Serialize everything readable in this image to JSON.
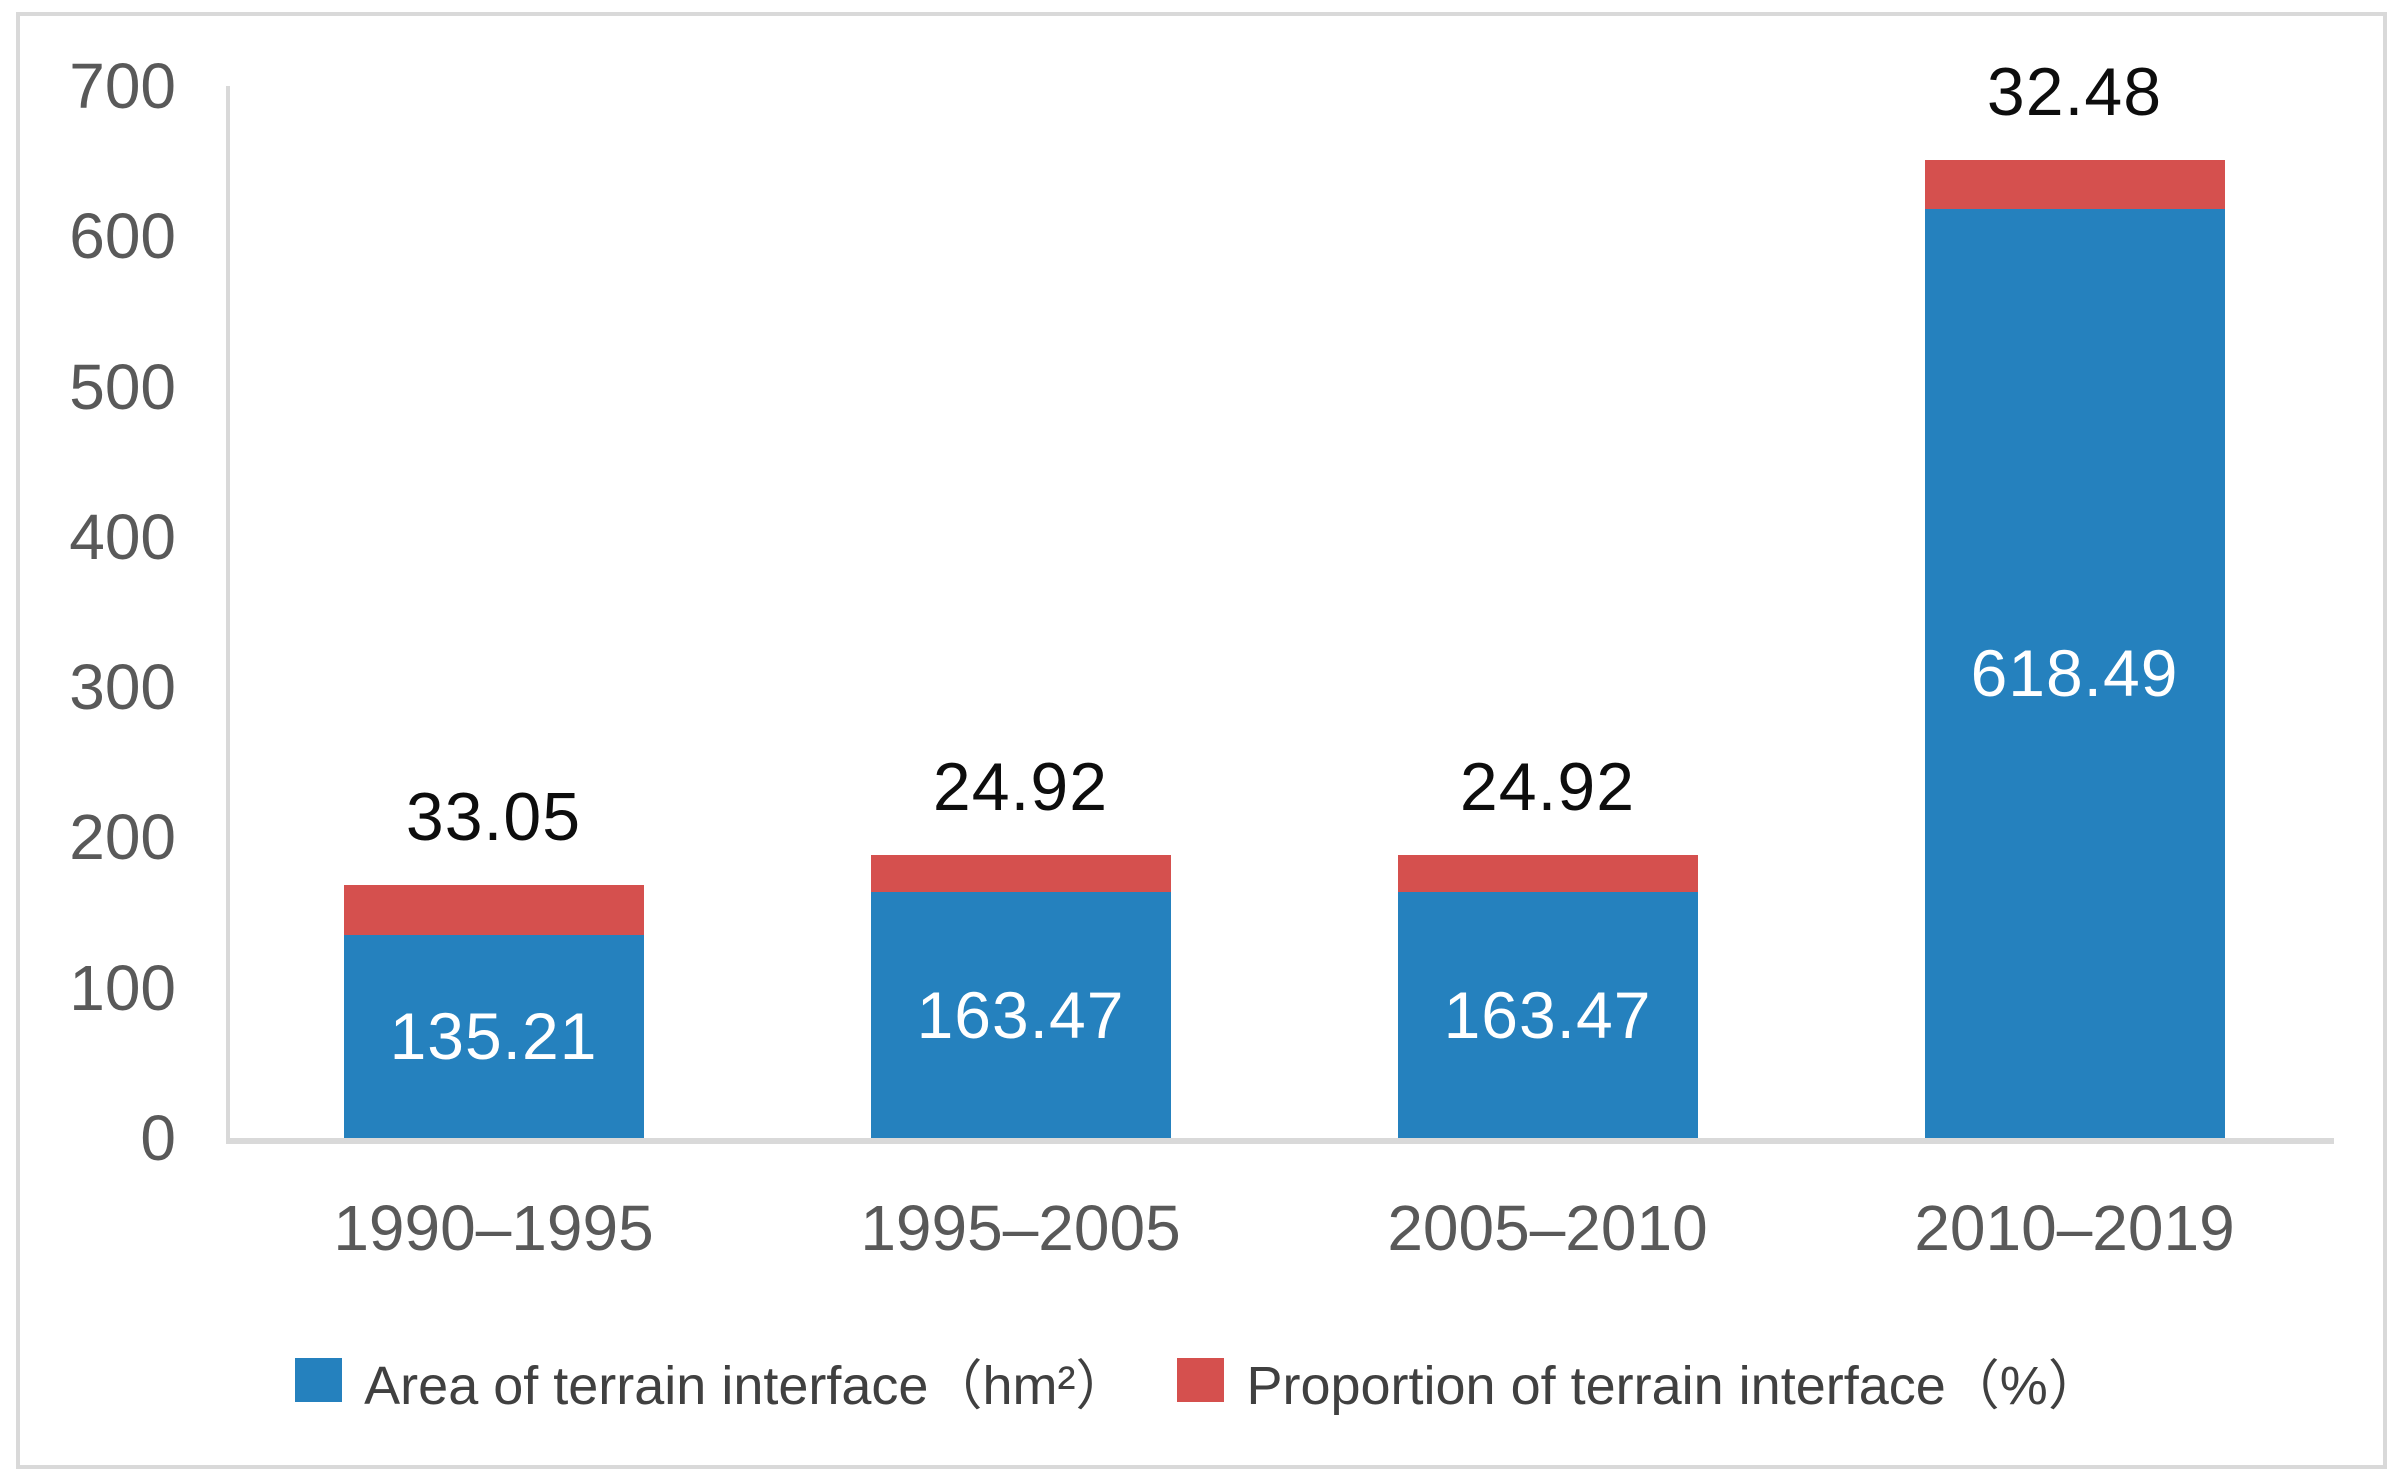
{
  "figure": {
    "background": "#ffffff",
    "border_color": "#d9d9d9"
  },
  "chart_data": {
    "type": "bar",
    "subtype": "stacked",
    "title": "",
    "xlabel": "",
    "ylabel": "",
    "categories": [
      "1990–1995",
      "1995–2005",
      "2005–2010",
      "2010–2019"
    ],
    "series": [
      {
        "name": "Area of terrain interface（hm²）",
        "color": "#2581be",
        "values": [
          135.21,
          163.47,
          163.47,
          618.49
        ],
        "label_color": "#ffffff",
        "label_position": "inside-center"
      },
      {
        "name": "Proportion of terrain interface（%）",
        "color": "#d5504e",
        "values": [
          33.05,
          24.92,
          24.92,
          32.48
        ],
        "label_color": "#0d0d0d",
        "label_position": "above-bar"
      }
    ],
    "ylim": [
      0,
      700
    ],
    "yticks": [
      0,
      100,
      200,
      300,
      400,
      500,
      600,
      700
    ],
    "grid": false,
    "legend_position": "bottom",
    "axis_color": "#d9d9d9",
    "tick_label_color": "#595959"
  }
}
